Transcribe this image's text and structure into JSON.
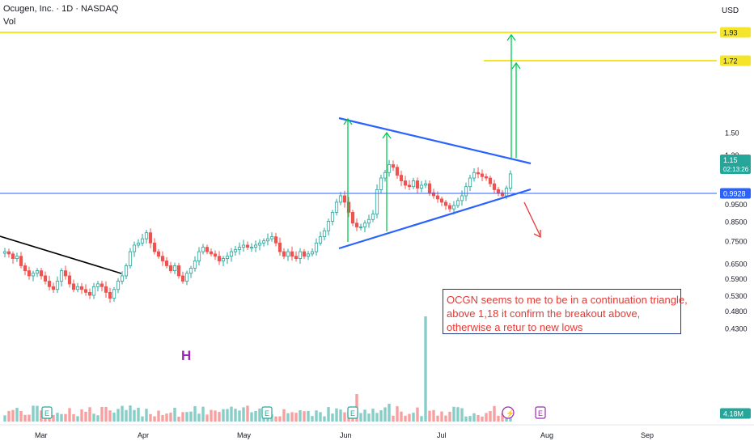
{
  "header": {
    "symbol_line": "Ocugen, Inc. · 1D · NASDAQ",
    "indicator": "Vol",
    "currency": "USD"
  },
  "price_axis": {
    "labels": [
      "1.50",
      "1.30",
      "0.9500",
      "0.8500",
      "0.7500",
      "0.6500",
      "0.5900",
      "0.5300",
      "0.4800",
      "0.4300"
    ],
    "badges": [
      {
        "text": "1.93",
        "bg": "#f5e52a",
        "fg": "#131722"
      },
      {
        "text": "1.72",
        "bg": "#f5e52a",
        "fg": "#131722"
      },
      {
        "text": "1.15",
        "sub": "02:13:26",
        "bg": "#26a69a",
        "fg": "#ffffff"
      },
      {
        "text": "0.9928",
        "bg": "#2962ff",
        "fg": "#ffffff"
      },
      {
        "text": "4.18M",
        "bg": "#26a69a",
        "fg": "#ffffff"
      }
    ]
  },
  "time_axis": [
    "Mar",
    "Apr",
    "May",
    "Jun",
    "Jul",
    "Aug",
    "Sep"
  ],
  "annotation": {
    "lines": [
      "OCGN  seems to me to be in a continuation triangle,",
      "above 1,18 it confirm the breakout above,",
      "otherwise a retur to new lows"
    ]
  },
  "h_marker": "H",
  "events": [
    {
      "type": "earnings",
      "label": "E"
    },
    {
      "type": "earnings",
      "label": "E"
    },
    {
      "type": "earnings",
      "label": "E"
    },
    {
      "type": "split",
      "label": "⚡"
    },
    {
      "type": "earnings-upcoming",
      "label": "E"
    }
  ],
  "colors": {
    "up": "#26a69a",
    "down": "#ef5350",
    "trend": "#2962ff",
    "target": "#f5e52a",
    "arrow_up": "#00c853",
    "arrow_down": "#e53935"
  },
  "chart_data": {
    "type": "candlestick",
    "title": "Ocugen, Inc. · 1D · NASDAQ",
    "xlabel": "",
    "ylabel": "USD",
    "x_ticks": [
      "Mar",
      "Apr",
      "May",
      "Jun",
      "Jul",
      "Aug",
      "Sep"
    ],
    "ylim": [
      0.41,
      2.05
    ],
    "y_scale": "log",
    "last_price": 1.15,
    "last_volume": "4.18M",
    "levels": [
      1.93,
      1.72,
      0.9928
    ],
    "series": [
      {
        "name": "OCGN",
        "closes": [
          0.7,
          0.69,
          0.67,
          0.68,
          0.64,
          0.62,
          0.6,
          0.61,
          0.62,
          0.6,
          0.58,
          0.56,
          0.55,
          0.58,
          0.62,
          0.6,
          0.57,
          0.55,
          0.56,
          0.55,
          0.54,
          0.53,
          0.56,
          0.57,
          0.56,
          0.54,
          0.52,
          0.55,
          0.58,
          0.6,
          0.64,
          0.7,
          0.73,
          0.74,
          0.76,
          0.79,
          0.74,
          0.7,
          0.68,
          0.66,
          0.64,
          0.62,
          0.64,
          0.6,
          0.58,
          0.61,
          0.63,
          0.66,
          0.7,
          0.72,
          0.7,
          0.69,
          0.68,
          0.66,
          0.67,
          0.68,
          0.7,
          0.71,
          0.72,
          0.73,
          0.72,
          0.72,
          0.73,
          0.74,
          0.75,
          0.76,
          0.77,
          0.74,
          0.7,
          0.68,
          0.7,
          0.68,
          0.67,
          0.7,
          0.68,
          0.69,
          0.7,
          0.74,
          0.77,
          0.8,
          0.85,
          0.9,
          0.96,
          1.0,
          0.96,
          0.9,
          0.84,
          0.82,
          0.82,
          0.84,
          0.86,
          0.89,
          1.04,
          1.12,
          1.16,
          1.22,
          1.2,
          1.14,
          1.1,
          1.07,
          1.06,
          1.1,
          1.05,
          1.07,
          1.08,
          1.02,
          1.0,
          0.98,
          0.96,
          0.94,
          0.92,
          0.94,
          0.97,
          1.0,
          1.06,
          1.12,
          1.16,
          1.15,
          1.13,
          1.12,
          1.08,
          1.04,
          1.02,
          1.0,
          1.05,
          1.15
        ]
      }
    ]
  }
}
